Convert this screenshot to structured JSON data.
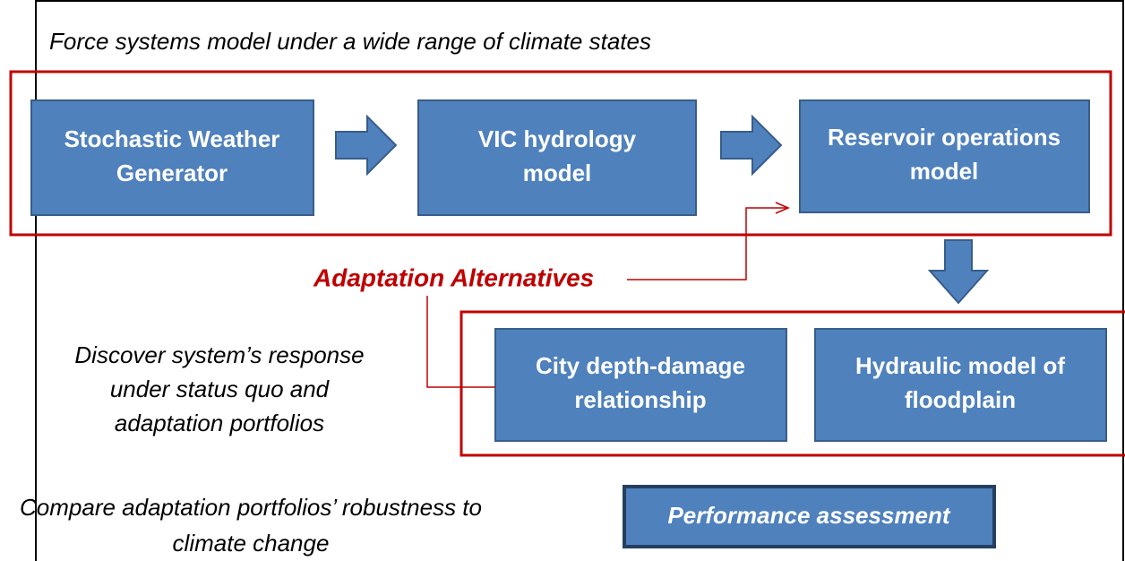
{
  "header": {
    "title": "Force systems model under a wide range of climate states"
  },
  "nodes": [
    {
      "lines": [
        "Stochastic Weather",
        "Generator"
      ]
    },
    {
      "lines": [
        "VIC hydrology",
        "model"
      ]
    },
    {
      "lines": [
        "Reservoir operations",
        "model"
      ]
    },
    {
      "lines": [
        "City depth-damage",
        "relationship"
      ]
    },
    {
      "lines": [
        "Hydraulic model of",
        "floodplain"
      ]
    },
    {
      "lines": [
        "Performance assessment"
      ]
    }
  ],
  "adaptation": "Adaptation Alternatives",
  "notes": [
    {
      "lines": [
        "Discover system’s response",
        "under status quo and",
        "adaptation portfolios"
      ]
    },
    {
      "lines": [
        "Compare adaptation portfolios’ robustness to",
        "climate change"
      ]
    }
  ]
}
